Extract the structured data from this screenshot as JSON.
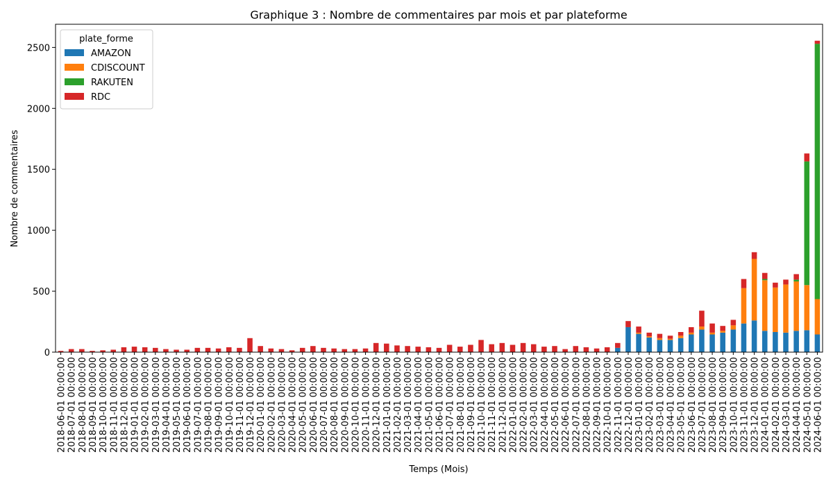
{
  "chart_data": {
    "type": "stacked-bar",
    "title": "Graphique 3 : Nombre de commentaires par mois et par plateforme",
    "x_label": "Temps (Mois)",
    "y_label": "Nombre de commentaires",
    "legend_title": "plate_forme",
    "legend_position": "upper left",
    "categories": [
      "2018-06-01 00:00:00",
      "2018-07-01 00:00:00",
      "2018-08-01 00:00:00",
      "2018-09-01 00:00:00",
      "2018-10-01 00:00:00",
      "2018-11-01 00:00:00",
      "2018-12-01 00:00:00",
      "2019-01-01 00:00:00",
      "2019-02-01 00:00:00",
      "2019-03-01 00:00:00",
      "2019-04-01 00:00:00",
      "2019-05-01 00:00:00",
      "2019-06-01 00:00:00",
      "2019-07-01 00:00:00",
      "2019-08-01 00:00:00",
      "2019-09-01 00:00:00",
      "2019-10-01 00:00:00",
      "2019-11-01 00:00:00",
      "2019-12-01 00:00:00",
      "2020-01-01 00:00:00",
      "2020-02-01 00:00:00",
      "2020-03-01 00:00:00",
      "2020-04-01 00:00:00",
      "2020-05-01 00:00:00",
      "2020-06-01 00:00:00",
      "2020-07-01 00:00:00",
      "2020-08-01 00:00:00",
      "2020-09-01 00:00:00",
      "2020-10-01 00:00:00",
      "2020-11-01 00:00:00",
      "2020-12-01 00:00:00",
      "2021-01-01 00:00:00",
      "2021-02-01 00:00:00",
      "2021-03-01 00:00:00",
      "2021-04-01 00:00:00",
      "2021-05-01 00:00:00",
      "2021-06-01 00:00:00",
      "2021-07-01 00:00:00",
      "2021-08-01 00:00:00",
      "2021-09-01 00:00:00",
      "2021-10-01 00:00:00",
      "2021-11-01 00:00:00",
      "2021-12-01 00:00:00",
      "2022-01-01 00:00:00",
      "2022-02-01 00:00:00",
      "2022-03-01 00:00:00",
      "2022-04-01 00:00:00",
      "2022-05-01 00:00:00",
      "2022-06-01 00:00:00",
      "2022-07-01 00:00:00",
      "2022-08-01 00:00:00",
      "2022-09-01 00:00:00",
      "2022-10-01 00:00:00",
      "2022-11-01 00:00:00",
      "2022-12-01 00:00:00",
      "2023-01-01 00:00:00",
      "2023-02-01 00:00:00",
      "2023-03-01 00:00:00",
      "2023-04-01 00:00:00",
      "2023-05-01 00:00:00",
      "2023-06-01 00:00:00",
      "2023-07-01 00:00:00",
      "2023-08-01 00:00:00",
      "2023-09-01 00:00:00",
      "2023-10-01 00:00:00",
      "2023-11-01 00:00:00",
      "2023-12-01 00:00:00",
      "2024-01-01 00:00:00",
      "2024-02-01 00:00:00",
      "2024-03-01 00:00:00",
      "2024-04-01 00:00:00",
      "2024-05-01 00:00:00",
      "2024-06-01 00:00:00"
    ],
    "series": [
      {
        "name": "AMAZON",
        "color": "#1f77b4",
        "values": [
          0,
          0,
          0,
          0,
          0,
          0,
          0,
          0,
          0,
          0,
          0,
          0,
          0,
          0,
          0,
          0,
          0,
          0,
          0,
          0,
          0,
          0,
          0,
          0,
          0,
          0,
          0,
          0,
          0,
          0,
          0,
          0,
          0,
          0,
          0,
          0,
          0,
          0,
          0,
          0,
          0,
          0,
          0,
          0,
          0,
          0,
          0,
          0,
          0,
          0,
          0,
          0,
          0,
          35,
          205,
          150,
          120,
          100,
          100,
          115,
          145,
          185,
          145,
          160,
          185,
          235,
          260,
          175,
          165,
          160,
          175,
          180,
          145
        ]
      },
      {
        "name": "CDISCOUNT",
        "color": "#ff7f0e",
        "values": [
          0,
          0,
          0,
          0,
          0,
          0,
          0,
          0,
          0,
          0,
          0,
          0,
          0,
          0,
          0,
          0,
          0,
          0,
          0,
          0,
          0,
          0,
          0,
          0,
          0,
          0,
          0,
          0,
          0,
          0,
          0,
          0,
          0,
          0,
          0,
          0,
          0,
          0,
          0,
          0,
          0,
          0,
          0,
          0,
          0,
          0,
          0,
          0,
          0,
          0,
          0,
          0,
          0,
          0,
          0,
          10,
          10,
          15,
          10,
          20,
          15,
          25,
          15,
          15,
          35,
          290,
          505,
          415,
          365,
          395,
          405,
          370,
          290
        ]
      },
      {
        "name": "RAKUTEN",
        "color": "#2ca02c",
        "values": [
          0,
          0,
          0,
          0,
          0,
          0,
          0,
          0,
          0,
          0,
          0,
          0,
          0,
          0,
          0,
          0,
          0,
          0,
          0,
          0,
          0,
          0,
          0,
          0,
          0,
          0,
          0,
          0,
          0,
          0,
          0,
          0,
          0,
          0,
          0,
          0,
          0,
          0,
          0,
          0,
          0,
          0,
          0,
          0,
          0,
          0,
          0,
          0,
          0,
          0,
          0,
          0,
          0,
          0,
          0,
          0,
          0,
          0,
          0,
          0,
          0,
          0,
          0,
          0,
          0,
          0,
          0,
          10,
          0,
          0,
          15,
          1015,
          2095
        ]
      },
      {
        "name": "RDC",
        "color": "#d62728",
        "values": [
          10,
          25,
          25,
          10,
          15,
          20,
          40,
          45,
          40,
          35,
          25,
          20,
          20,
          35,
          35,
          30,
          40,
          35,
          115,
          50,
          30,
          25,
          15,
          35,
          50,
          35,
          30,
          25,
          25,
          30,
          75,
          70,
          55,
          50,
          45,
          40,
          35,
          60,
          45,
          60,
          100,
          65,
          75,
          60,
          75,
          65,
          45,
          50,
          25,
          50,
          40,
          30,
          40,
          40,
          50,
          50,
          30,
          35,
          25,
          30,
          45,
          130,
          75,
          40,
          45,
          75,
          55,
          50,
          40,
          40,
          45,
          65,
          25
        ]
      }
    ],
    "ylim": [
      0,
      2690
    ],
    "yticks": [
      0,
      500,
      1000,
      1500,
      2000,
      2500
    ],
    "grid": false
  }
}
